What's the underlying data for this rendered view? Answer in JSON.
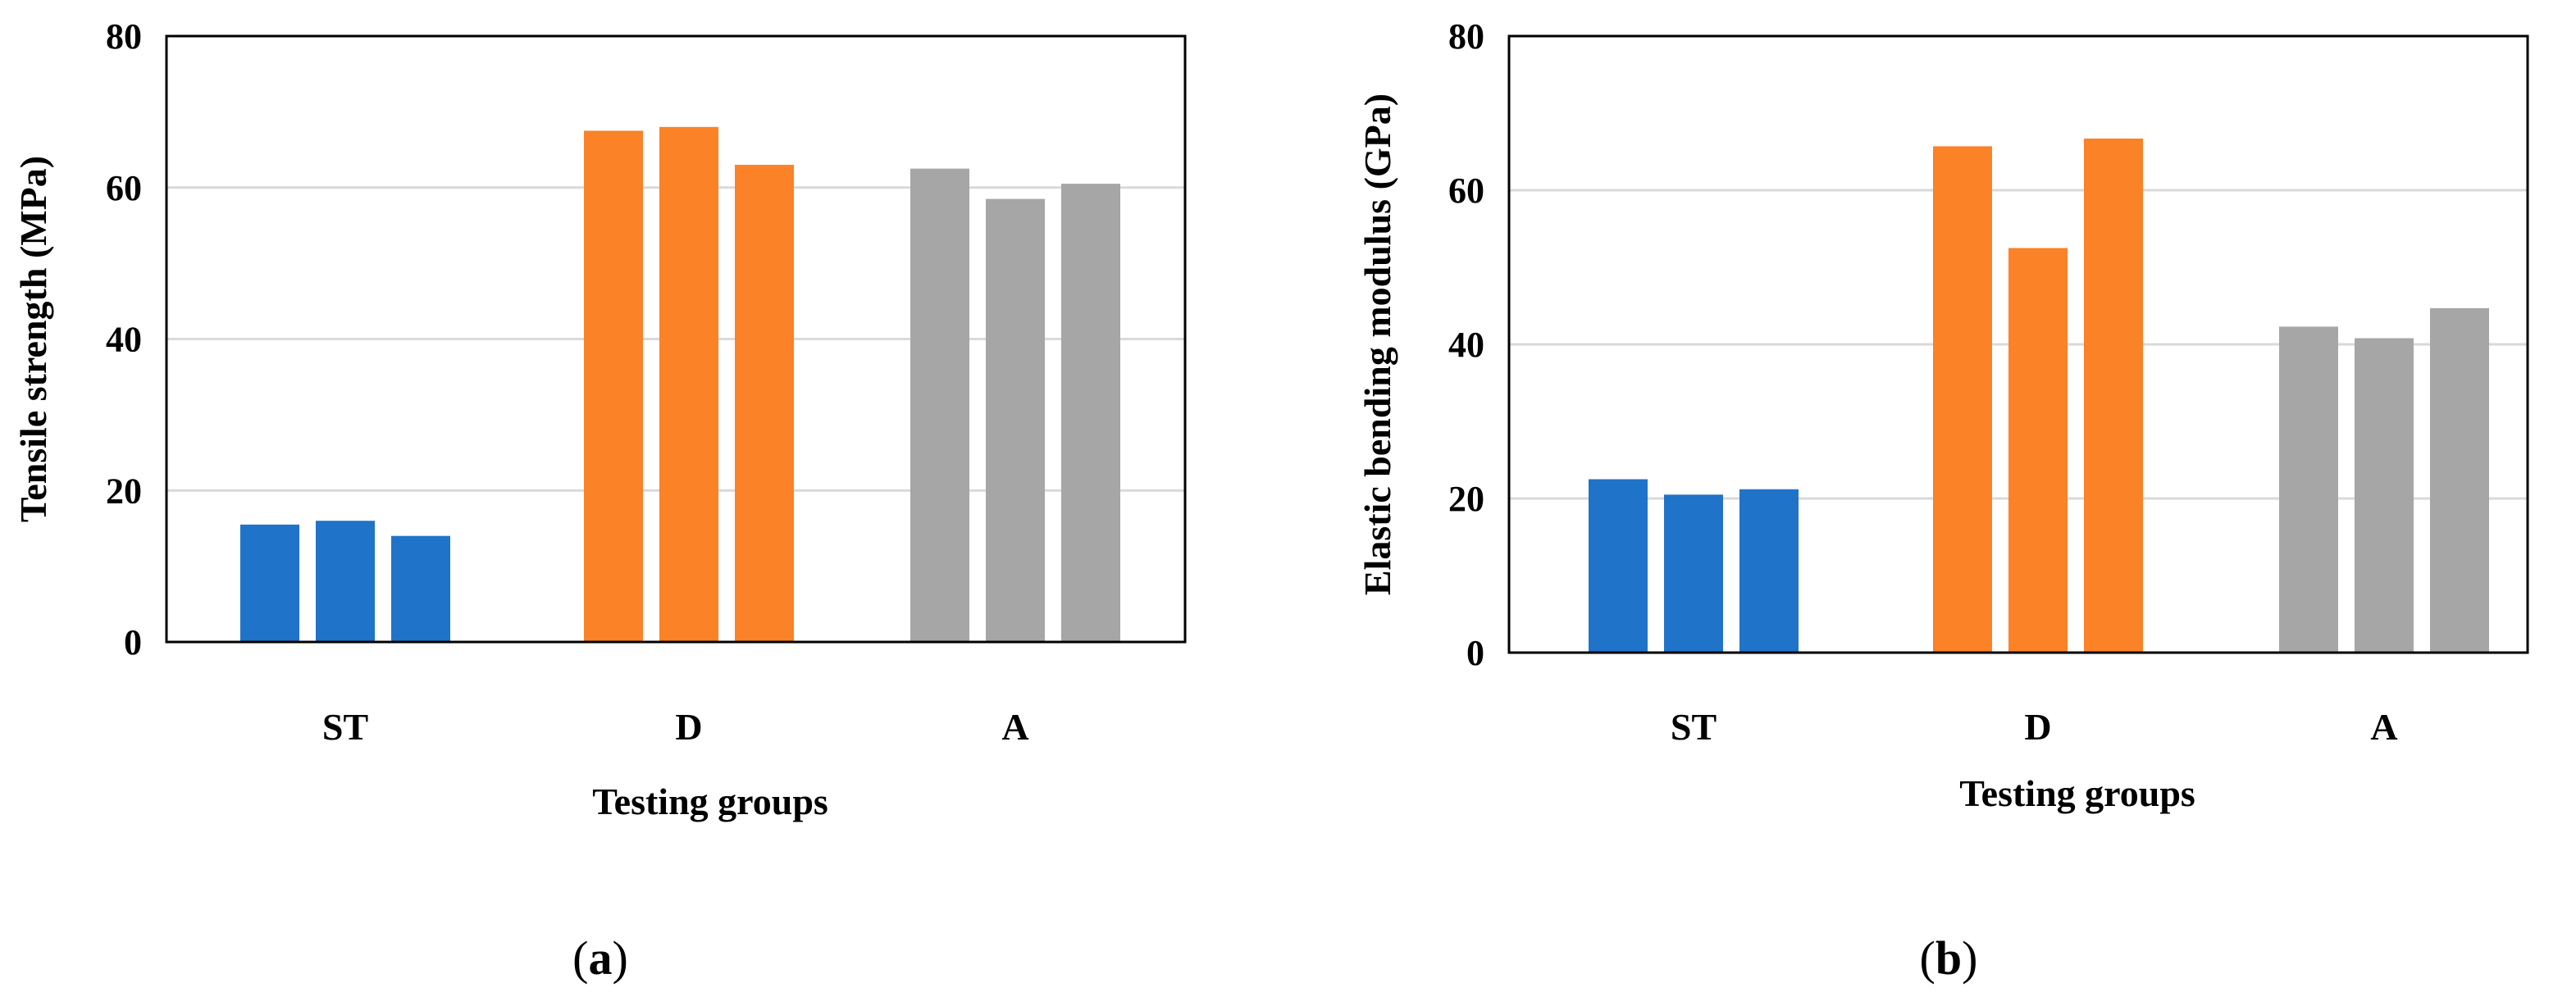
{
  "chart_data": [
    {
      "type": "bar",
      "panel_label": "a",
      "categories": [
        "ST",
        "D",
        "A"
      ],
      "series_values": [
        [
          15.5,
          16,
          14
        ],
        [
          67.5,
          68,
          63
        ],
        [
          62.5,
          58.5,
          60.5
        ]
      ],
      "colors": [
        "#1f73c8",
        "#fb8227",
        "#a6a6a6"
      ],
      "xlabel": "Testing groups",
      "ylabel": "Tensile strength (MPa)",
      "ylim": [
        0,
        80
      ],
      "yticks": [
        "0",
        "20",
        "40",
        "60",
        "80"
      ],
      "grid": true
    },
    {
      "type": "bar",
      "panel_label": "b",
      "categories": [
        "ST",
        "D",
        "A"
      ],
      "series_values": [
        [
          22.5,
          20.5,
          21.2
        ],
        [
          65.7,
          52.5,
          66.7
        ],
        [
          42.3,
          40.8,
          44.7
        ]
      ],
      "colors": [
        "#1f73c8",
        "#fb8227",
        "#a6a6a6"
      ],
      "xlabel": "Testing groups",
      "ylabel": "Elastic bending modulus (GPa)",
      "ylim": [
        0,
        80
      ],
      "yticks": [
        "0",
        "20",
        "40",
        "60",
        "80"
      ],
      "grid": true
    }
  ]
}
